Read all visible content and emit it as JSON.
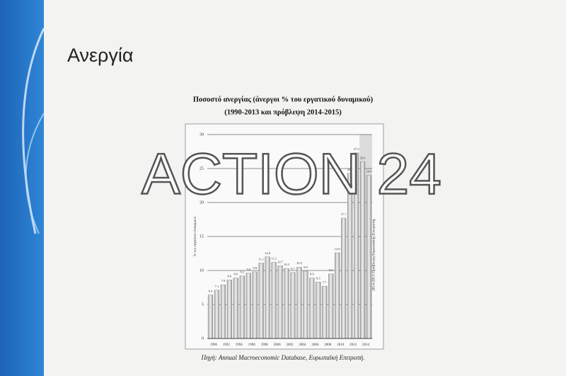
{
  "slide_title": "Ανεργία",
  "watermark": "ACTION 24",
  "chart_data": {
    "type": "bar",
    "title": "Ποσοστό ανεργίας (άνεργοι % του εργατικού δυναμικού)",
    "subtitle": "(1990-2013 και πρόβλεψη 2014-2015)",
    "y_label": "% του εργατικού δυναμικού",
    "annotation": "2014-2015 Πρόβλεψη Ευρωπαϊκής Επιτροπής",
    "source": "Πηγή: Annual Macroeconomic Database, Ευρωπαϊκή Επιτροπή.",
    "categories": [
      "1990",
      null,
      "1992",
      null,
      "1994",
      null,
      "1996",
      null,
      "1998",
      null,
      "2000",
      null,
      "2002",
      null,
      "2004",
      null,
      "2006",
      null,
      "2008",
      null,
      "2010",
      null,
      "2012",
      null,
      "2014",
      null
    ],
    "values": [
      6.4,
      7.1,
      7.9,
      8.6,
      8.9,
      9.2,
      9.6,
      9.8,
      11.1,
      12.0,
      11.2,
      10.7,
      10.3,
      9.7,
      10.5,
      9.9,
      8.9,
      8.3,
      7.7,
      9.5,
      12.6,
      17.7,
      24.3,
      27.3,
      26.0,
      24.0
    ],
    "value_labels": [
      "6.4",
      "7.1",
      "7.9",
      "8.6",
      "8.9",
      "9.2",
      "9.6",
      "9.8",
      "11.1",
      "12.0",
      "11.2",
      "10.7",
      "10.3",
      "9.7",
      "10.5",
      "9.9",
      "8.9",
      "8.3",
      "7.7",
      "9.5",
      "12.6",
      "17.7",
      "24.3",
      "27.3",
      "26.0",
      "24.0"
    ],
    "color": "#d4d4d4",
    "ylim": [
      0,
      30
    ],
    "yticks": [
      0,
      5,
      10,
      15,
      20,
      25,
      30
    ],
    "grid": true
  }
}
